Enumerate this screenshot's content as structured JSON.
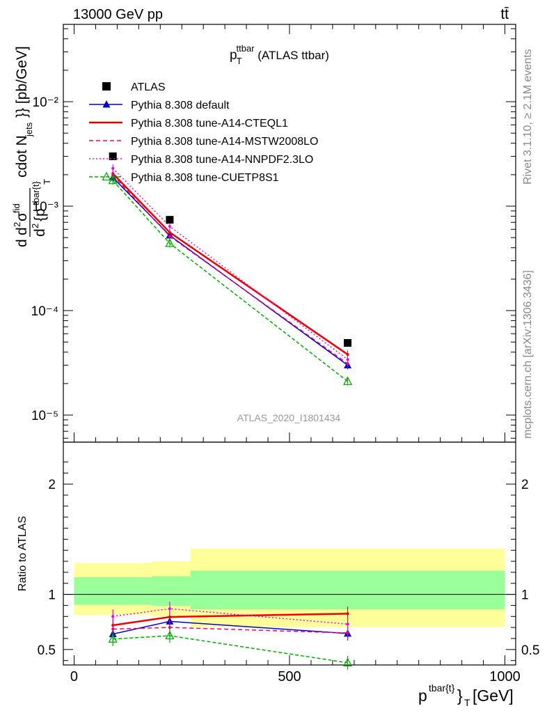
{
  "header": {
    "beam": "13000 GeV pp",
    "process": "tt̄"
  },
  "plot_title": {
    "main": "p",
    "sub": "T",
    "sup": "ttbar",
    "rest": " (ATLAS ttbar)"
  },
  "watermarks": {
    "rivet": "Rivet 3.1.10, ≥ 2.1M events",
    "mcplots": "mcplots.cern.ch [arXiv:1306.3436]",
    "analysis": "ATLAS_2020_I1801434"
  },
  "chart_data": [
    {
      "type": "line",
      "panel": "main",
      "y_scale": "log",
      "ylim": [
        5.5e-06,
        0.055
      ],
      "xlim": [
        -25,
        1025
      ],
      "ylabel": "d d²σ^fid / d² {p_T^tbar{t}} cdot N_jets}} [pb/GeV]",
      "ytick_labels": [
        "10⁻⁵",
        "10⁻⁴",
        "10⁻³",
        "10⁻²"
      ],
      "legend_position": "top-left",
      "x": [
        90,
        222,
        635
      ],
      "x_bins": [
        [
          0,
          180
        ],
        [
          180,
          270
        ],
        [
          270,
          1000
        ]
      ],
      "series": [
        {
          "name": "ATLAS",
          "marker": "square",
          "color": "#000000",
          "dash": "none",
          "values": [
            0.003,
            0.00074,
            4.9e-05
          ]
        },
        {
          "name": "Pythia 8.308 default",
          "marker": "triangle",
          "color": "#0000cc",
          "dash": "none",
          "values": [
            0.00188,
            0.000525,
            3e-05
          ]
        },
        {
          "name": "Pythia 8.308 tune-A14-CTEQL1",
          "marker": "none",
          "color": "#ee0000",
          "dash": "none",
          "values": [
            0.00205,
            0.00056,
            3.8e-05
          ]
        },
        {
          "name": "Pythia 8.308 tune-A14-MSTW2008LO",
          "marker": "none",
          "color": "#ee0066",
          "dash": "6,4",
          "values": [
            0.00198,
            0.000515,
            3.1e-05
          ]
        },
        {
          "name": "Pythia 8.308 tune-A14-NNPDF2.3LO",
          "marker": "none",
          "color": "#ee00ee",
          "dash": "2,3",
          "values": [
            0.0023,
            0.00064,
            3.4e-05
          ]
        },
        {
          "name": "Pythia 8.308 tune-CUETP8S1",
          "marker": "open-triangle",
          "color": "#00aa00",
          "dash": "5,3",
          "values": [
            0.00176,
            0.00044,
            2.1e-05
          ]
        }
      ]
    },
    {
      "type": "line",
      "panel": "ratio",
      "ylim": [
        0.36,
        2.38
      ],
      "xlim": [
        -25,
        1025
      ],
      "ylabel": "Ratio to ATLAS",
      "xlabel": "p_T^tbar{t}} [GeV]",
      "xtick_labels": [
        "0",
        "500",
        "1000"
      ],
      "ytick_labels": [
        "0.5",
        "1",
        "2"
      ],
      "bands": {
        "bins": [
          [
            0,
            180
          ],
          [
            180,
            270
          ],
          [
            270,
            1000
          ]
        ],
        "total": [
          [
            0.815,
            1.285
          ],
          [
            0.8,
            1.3
          ],
          [
            0.705,
            1.415
          ]
        ],
        "stat": [
          [
            0.905,
            1.155
          ],
          [
            0.895,
            1.165
          ],
          [
            0.865,
            1.215
          ]
        ],
        "total_color": "#ffff99",
        "stat_color": "#99ff99"
      },
      "x": [
        90,
        222,
        635
      ],
      "series": [
        {
          "name": "Pythia 8.308 default",
          "color": "#0000cc",
          "dash": "none",
          "marker": "triangle",
          "values": [
            0.64,
            0.755,
            0.645
          ]
        },
        {
          "name": "Pythia 8.308 tune-A14-CTEQL1",
          "color": "#ee0000",
          "dash": "none",
          "marker": "none",
          "values": [
            0.72,
            0.795,
            0.825
          ]
        },
        {
          "name": "Pythia 8.308 tune-A14-MSTW2008LO",
          "color": "#ee0066",
          "dash": "6,4",
          "marker": "none",
          "values": [
            0.685,
            0.7,
            0.65
          ]
        },
        {
          "name": "Pythia 8.308 tune-A14-NNPDF2.3LO",
          "color": "#ee00ee",
          "dash": "2,3",
          "marker": "none",
          "values": [
            0.8,
            0.87,
            0.73
          ]
        },
        {
          "name": "Pythia 8.308 tune-CUETP8S1",
          "color": "#00aa00",
          "dash": "5,3",
          "marker": "open-triangle",
          "values": [
            0.595,
            0.625,
            0.38
          ]
        }
      ]
    }
  ]
}
